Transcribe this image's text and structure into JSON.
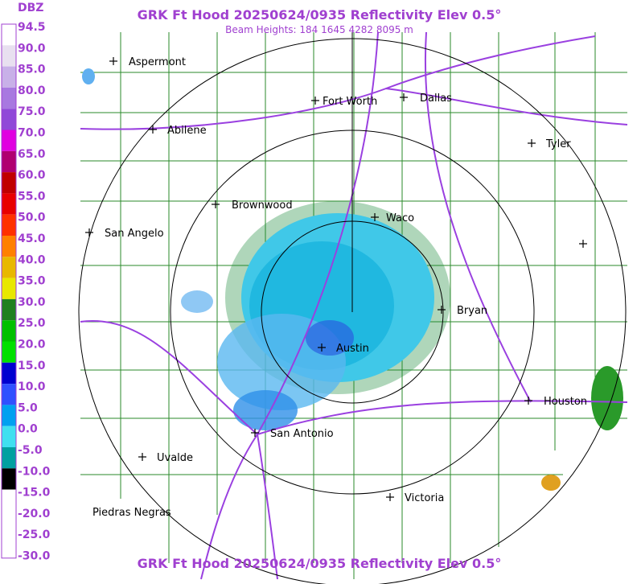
{
  "header": {
    "title": "GRK Ft Hood 20250624/0935 Reflectivity Elev 0.5°",
    "subtitle": "Beam Heights: 184 1645 4282 8095 m"
  },
  "legend": {
    "unit": "DBZ",
    "labels": [
      "94.5",
      "90.0",
      "85.0",
      "80.0",
      "75.0",
      "70.0",
      "65.0",
      "60.0",
      "55.0",
      "50.0",
      "45.0",
      "40.0",
      "35.0",
      "30.0",
      "25.0",
      "20.0",
      "15.0",
      "10.0",
      "5.0",
      "0.0",
      "-5.0",
      "-10.0",
      "-15.0",
      "-20.0",
      "-25.0",
      "-30.0"
    ]
  },
  "cities": [
    "Aspermont",
    "Fort Worth",
    "Dallas",
    "Abilene",
    "Tyler",
    "Brownwood",
    "Waco",
    "San Angelo",
    "Bryan",
    "Austin",
    "Houston",
    "San Antonio",
    "Uvalde",
    "Victoria",
    "Piedras Negras"
  ],
  "footer": {
    "title": "GRK Ft Hood 20250624/0935 Reflectivity Elev 0.5°"
  }
}
